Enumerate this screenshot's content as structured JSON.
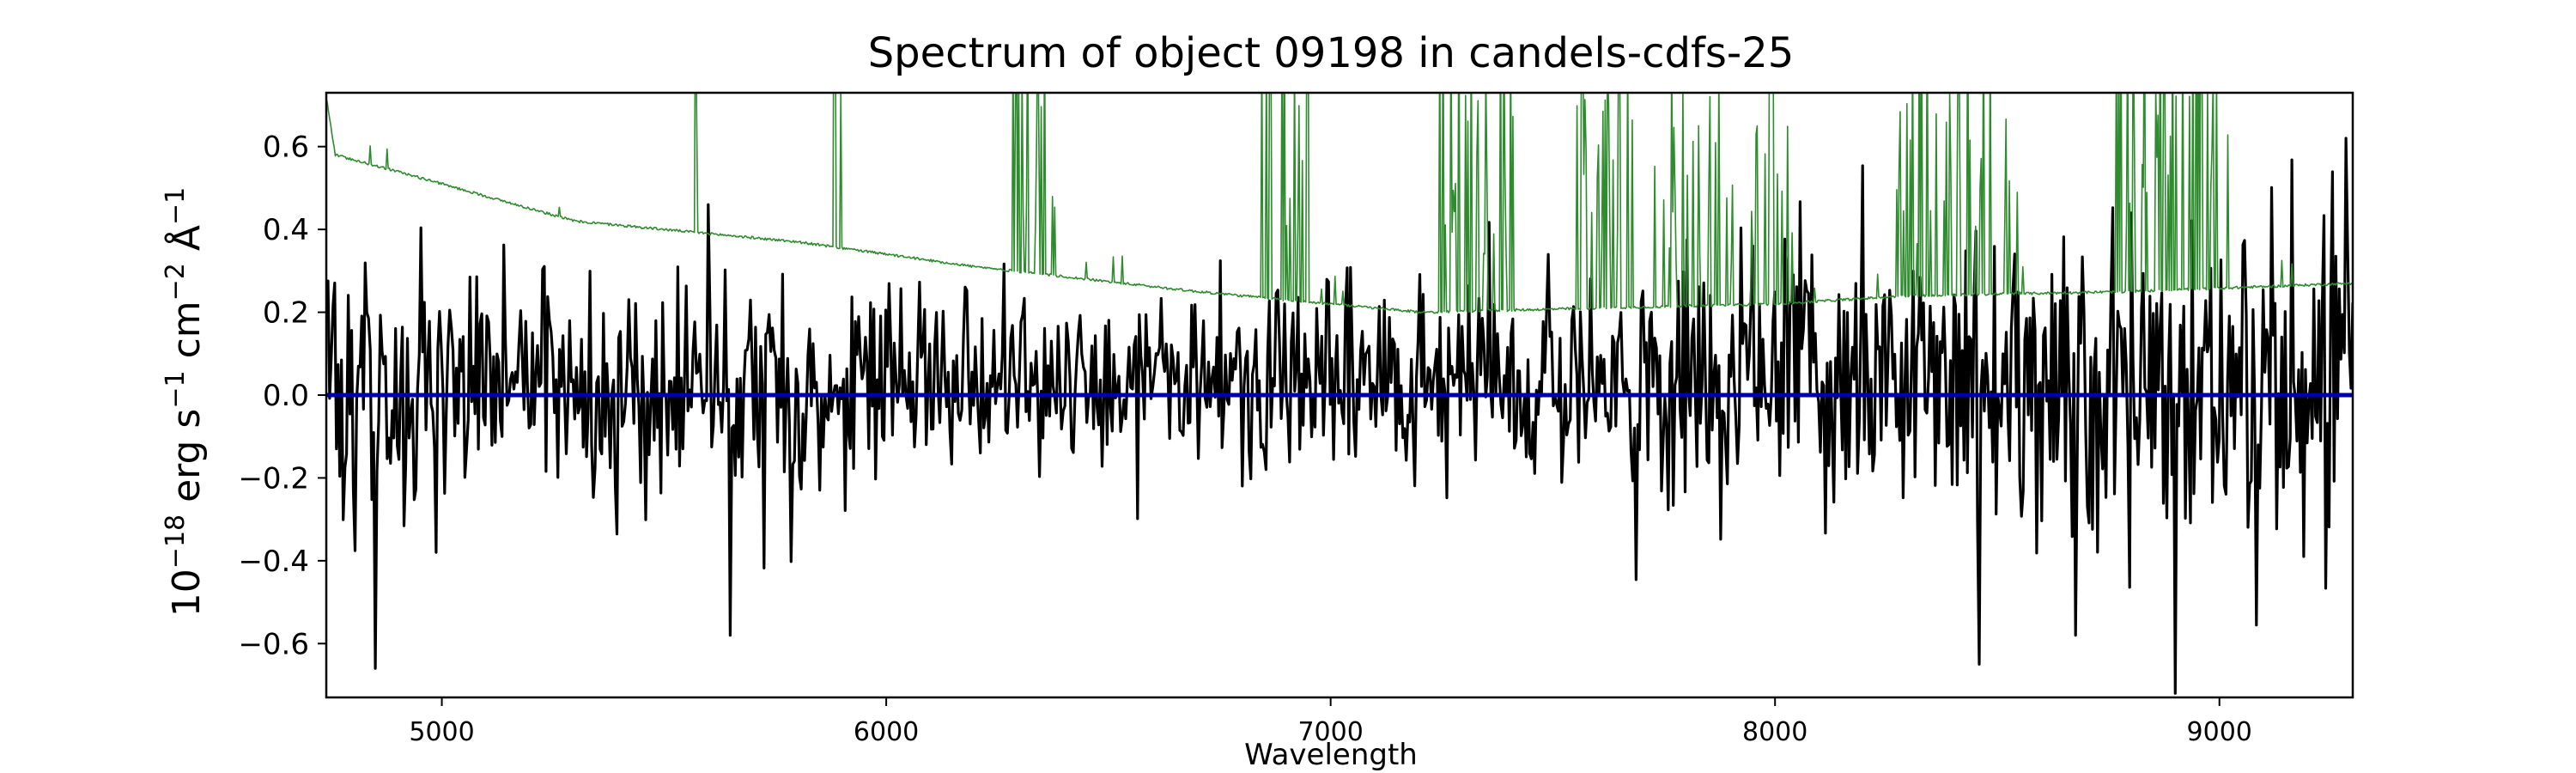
{
  "chart_data": {
    "type": "line",
    "title": "Spectrum of object 09198 in candels-cdfs-25",
    "xlabel": "Wavelength",
    "ylabel": {
      "base": "10",
      "exp1": "−18",
      "unit1": " erg s",
      "exp2": "−1",
      "unit2": " cm",
      "exp3": "−2",
      "unit3": " Å",
      "exp4": "−1"
    },
    "xlim": [
      4740,
      9300
    ],
    "ylim": [
      -0.73,
      0.73
    ],
    "x_ticks": [
      5000,
      6000,
      7000,
      8000,
      9000
    ],
    "x_tick_labels": [
      "5000",
      "6000",
      "7000",
      "8000",
      "9000"
    ],
    "y_ticks": [
      -0.6,
      -0.4,
      -0.2,
      0.0,
      0.2,
      0.4,
      0.6
    ],
    "y_tick_labels": [
      "−0.6",
      "−0.4",
      "−0.2",
      "0.0",
      "0.2",
      "0.4",
      "0.6"
    ],
    "grid": false,
    "legend": "none",
    "series": [
      {
        "role": "flux",
        "color": "#000000",
        "x_start": 4740,
        "x_end": 9300,
        "n_points": 1200,
        "noise_envelope": [
          [
            4740,
            0.2
          ],
          [
            6000,
            0.17
          ],
          [
            7000,
            0.14
          ],
          [
            7300,
            0.18
          ],
          [
            8000,
            0.22
          ],
          [
            8800,
            0.27
          ],
          [
            9300,
            0.3
          ]
        ],
        "extremes": [
          [
            4850,
            -0.66
          ],
          [
            5650,
            -0.58
          ],
          [
            8460,
            -0.65
          ],
          [
            8900,
            -0.72
          ],
          [
            9285,
            0.62
          ],
          [
            8800,
            0.44
          ],
          [
            5600,
            0.46
          ]
        ]
      },
      {
        "role": "error",
        "color": "#2e8b2e",
        "continuum": [
          [
            4740,
            0.72
          ],
          [
            4760,
            0.58
          ],
          [
            4900,
            0.54
          ],
          [
            5300,
            0.42
          ],
          [
            5800,
            0.37
          ],
          [
            6200,
            0.31
          ],
          [
            6700,
            0.25
          ],
          [
            7000,
            0.22
          ],
          [
            7200,
            0.2
          ],
          [
            7600,
            0.21
          ],
          [
            8000,
            0.22
          ],
          [
            8300,
            0.24
          ],
          [
            8800,
            0.25
          ],
          [
            9300,
            0.27
          ]
        ],
        "emission_bands": [
          [
            5570,
            5590
          ],
          [
            5880,
            5900
          ],
          [
            6280,
            6380
          ],
          [
            6830,
            6950
          ],
          [
            7240,
            7420
          ],
          [
            7550,
            7700
          ],
          [
            7720,
            8040
          ],
          [
            8270,
            8450
          ],
          [
            8450,
            8550
          ],
          [
            8760,
            9020
          ]
        ]
      },
      {
        "role": "zero",
        "color": "#0000aa",
        "x": [
          4740,
          9300
        ],
        "y": [
          0,
          0
        ]
      }
    ]
  }
}
